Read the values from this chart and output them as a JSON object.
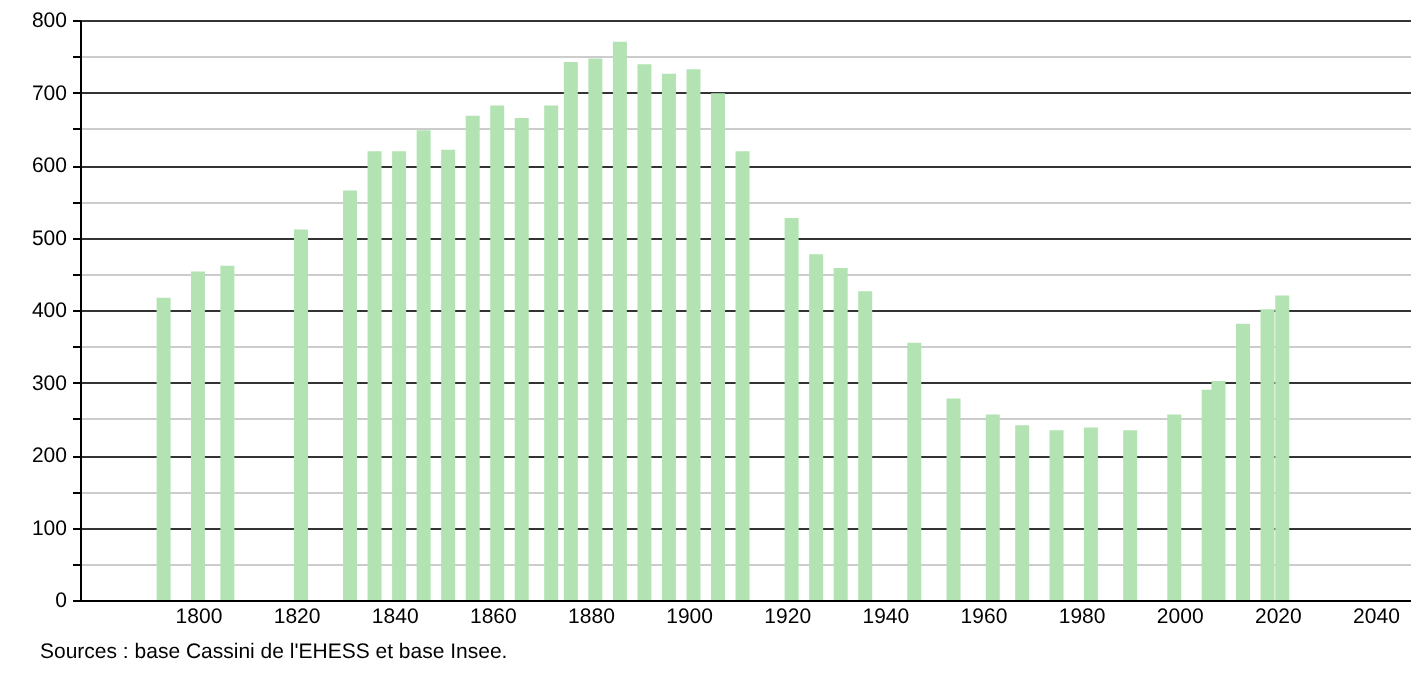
{
  "chart_data": {
    "type": "bar",
    "x": [
      1793,
      1800,
      1806,
      1821,
      1831,
      1836,
      1841,
      1846,
      1851,
      1856,
      1861,
      1866,
      1872,
      1876,
      1881,
      1886,
      1891,
      1896,
      1901,
      1906,
      1911,
      1921,
      1926,
      1931,
      1936,
      1946,
      1954,
      1962,
      1968,
      1975,
      1982,
      1990,
      1999,
      2006,
      2008,
      2013,
      2018,
      2021
    ],
    "values": [
      417,
      453,
      461,
      511,
      565,
      619,
      619,
      648,
      621,
      668,
      682,
      665,
      682,
      742,
      747,
      770,
      739,
      726,
      732,
      699,
      619,
      527,
      477,
      458,
      426,
      355,
      278,
      256,
      241,
      234,
      238,
      234,
      256,
      290,
      302,
      381,
      401,
      420
    ],
    "color": "#b3e3b3",
    "xlim": [
      1778,
      2045
    ],
    "xticks": [
      1800,
      1820,
      1840,
      1860,
      1880,
      1900,
      1920,
      1940,
      1960,
      1980,
      2000,
      2020,
      2040
    ],
    "ylim": [
      0,
      800
    ],
    "yticks": [
      0,
      {
        "value": 50,
        "label": null
      },
      100,
      {
        "value": 150,
        "label": null
      },
      200,
      {
        "value": 250,
        "label": null
      },
      300,
      {
        "value": 350,
        "label": null
      },
      400,
      {
        "value": 450,
        "label": null
      },
      500,
      {
        "value": 550,
        "label": null
      },
      600,
      {
        "value": 650,
        "label": null
      },
      700,
      {
        "value": 750,
        "label": null
      },
      800
    ],
    "grid": "y",
    "annotations": [
      "Sources : base Cassini de l'EHESS et base Insee."
    ]
  }
}
